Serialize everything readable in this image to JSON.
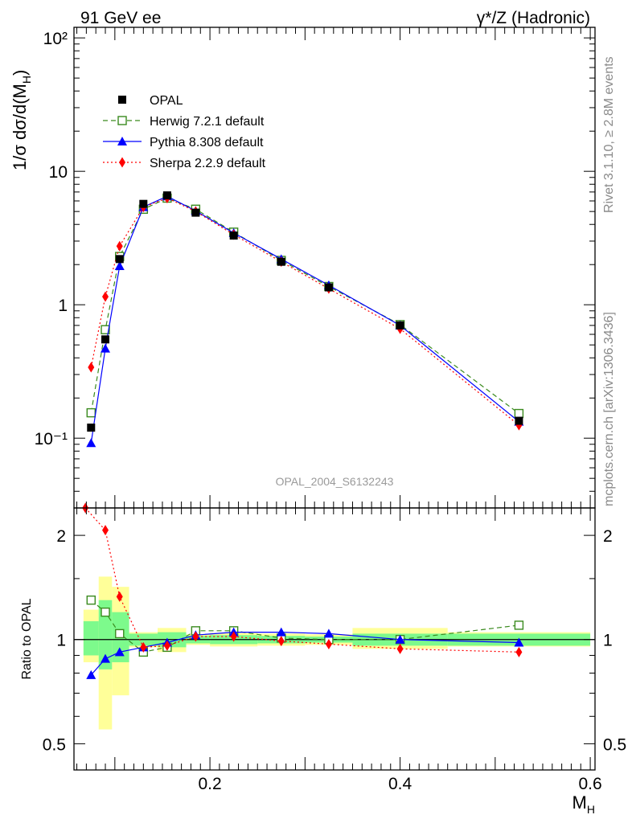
{
  "header": {
    "left": "91 GeV ee",
    "right": "γ*/Z (Hadronic)"
  },
  "side_text": {
    "rivet": "Rivet 3.1.10, ≥ 2.8M events",
    "source": "mcplots.cern.ch [arXiv:1306.3436]"
  },
  "plot_id": "OPAL_2004_S6132243",
  "colors": {
    "data": "#000000",
    "herwig": "#3a8a1e",
    "pythia": "#0000ff",
    "sherpa": "#ff0000",
    "band_stat": "#7dfa8c",
    "band_total": "#ffff99"
  },
  "chart_data": [
    {
      "type": "line",
      "panel": "main",
      "ylabel": "1/σ dσ/d(M_H)",
      "yscale": "log",
      "ylim": [
        0.03,
        120
      ],
      "xlim": [
        0.057,
        0.605
      ],
      "yticks": [
        {
          "label": "10⁻¹",
          "value": 0.1
        },
        {
          "label": "1",
          "value": 1
        },
        {
          "label": "10",
          "value": 10
        },
        {
          "label": "10²",
          "value": 100
        }
      ],
      "legend_position": "top-left",
      "series": [
        {
          "name": "OPAL",
          "key": "data",
          "marker": "square",
          "x": [
            0.075,
            0.09,
            0.105,
            0.13,
            0.155,
            0.185,
            0.225,
            0.275,
            0.325,
            0.4,
            0.525
          ],
          "y": [
            0.12,
            0.55,
            2.2,
            5.7,
            6.6,
            4.9,
            3.3,
            2.1,
            1.35,
            0.7,
            0.135
          ]
        },
        {
          "name": "Herwig 7.2.1 default",
          "key": "herwig",
          "marker": "open-square",
          "dash": "6,4",
          "x": [
            0.075,
            0.09,
            0.105,
            0.13,
            0.155,
            0.185,
            0.225,
            0.275,
            0.325,
            0.4,
            0.525
          ],
          "y": [
            0.155,
            0.65,
            2.3,
            5.2,
            6.3,
            5.2,
            3.5,
            2.15,
            1.37,
            0.71,
            0.153
          ]
        },
        {
          "name": "Pythia 8.308 default",
          "key": "pythia",
          "marker": "triangle",
          "dash": "",
          "x": [
            0.075,
            0.09,
            0.105,
            0.13,
            0.155,
            0.185,
            0.225,
            0.275,
            0.325,
            0.4,
            0.525
          ],
          "y": [
            0.092,
            0.47,
            1.95,
            5.4,
            6.5,
            5.05,
            3.45,
            2.2,
            1.4,
            0.7,
            0.133
          ]
        },
        {
          "name": "Sherpa 2.2.9 default",
          "key": "sherpa",
          "marker": "diamond",
          "dash": "2,3",
          "x": [
            0.075,
            0.09,
            0.105,
            0.13,
            0.155,
            0.185,
            0.225,
            0.275,
            0.325,
            0.4,
            0.525
          ],
          "y": [
            0.34,
            1.15,
            2.75,
            5.4,
            6.3,
            5.0,
            3.35,
            2.1,
            1.32,
            0.66,
            0.125
          ]
        }
      ]
    },
    {
      "type": "line",
      "panel": "ratio",
      "ylabel": "Ratio to OPAL",
      "xlabel": "M_H",
      "yscale": "log",
      "ylim": [
        0.42,
        2.4
      ],
      "xlim": [
        0.057,
        0.605
      ],
      "yticks": [
        {
          "label": "0.5",
          "value": 0.5
        },
        {
          "label": "1",
          "value": 1
        },
        {
          "label": "2",
          "value": 2
        }
      ],
      "xticks": [
        {
          "label": "0.2",
          "value": 0.2
        },
        {
          "label": "0.4",
          "value": 0.4
        },
        {
          "label": "0.6",
          "value": 0.6
        }
      ],
      "bands": {
        "x_edges": [
          0.067,
          0.083,
          0.097,
          0.115,
          0.145,
          0.175,
          0.2,
          0.25,
          0.3,
          0.35,
          0.45,
          0.6
        ],
        "stat_low": [
          0.9,
          0.82,
          0.86,
          0.96,
          0.95,
          0.975,
          0.97,
          0.975,
          0.98,
          0.96,
          0.96
        ],
        "stat_high": [
          1.13,
          1.3,
          1.2,
          1.04,
          1.05,
          1.025,
          1.03,
          1.025,
          1.02,
          1.04,
          1.04
        ],
        "total_low": [
          0.86,
          0.55,
          0.69,
          0.95,
          0.92,
          0.965,
          0.955,
          0.96,
          0.965,
          0.94,
          0.955
        ],
        "total_high": [
          1.22,
          1.52,
          1.42,
          1.05,
          1.08,
          1.035,
          1.045,
          1.04,
          1.035,
          1.08,
          1.05
        ]
      },
      "series": [
        {
          "name": "Herwig 7.2.1 default",
          "key": "herwig",
          "marker": "open-square",
          "dash": "6,4",
          "x": [
            0.075,
            0.09,
            0.105,
            0.13,
            0.155,
            0.185,
            0.225,
            0.275,
            0.325,
            0.4,
            0.525
          ],
          "y": [
            1.3,
            1.2,
            1.04,
            0.92,
            0.95,
            1.06,
            1.06,
            1.01,
            1.0,
            1.0,
            1.1
          ]
        },
        {
          "name": "Pythia 8.308 default",
          "key": "pythia",
          "marker": "triangle",
          "dash": "",
          "x": [
            0.075,
            0.09,
            0.105,
            0.13,
            0.155,
            0.185,
            0.225,
            0.275,
            0.325,
            0.4,
            0.525
          ],
          "y": [
            0.79,
            0.88,
            0.92,
            0.95,
            0.98,
            1.03,
            1.05,
            1.05,
            1.04,
            1.0,
            0.98
          ]
        },
        {
          "name": "Sherpa 2.2.9 default",
          "key": "sherpa",
          "marker": "diamond",
          "dash": "2,3",
          "x": [
            0.069,
            0.09,
            0.105,
            0.13,
            0.155,
            0.185,
            0.225,
            0.275,
            0.325,
            0.4,
            0.525
          ],
          "y": [
            2.4,
            2.07,
            1.33,
            0.95,
            0.96,
            1.02,
            1.02,
            0.99,
            0.97,
            0.94,
            0.92
          ]
        }
      ]
    }
  ]
}
